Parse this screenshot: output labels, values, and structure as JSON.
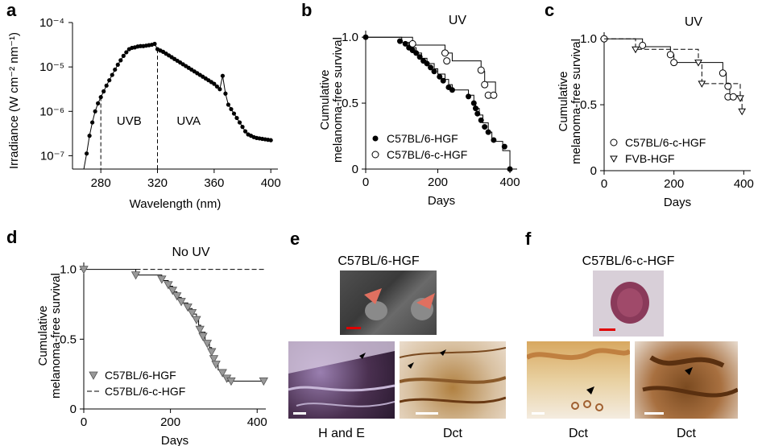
{
  "panels": {
    "a": {
      "label": "a"
    },
    "b": {
      "label": "b"
    },
    "c": {
      "label": "c"
    },
    "d": {
      "label": "d"
    },
    "e": {
      "label": "e",
      "title": "C57BL/6-HGF",
      "captions": [
        "H and E",
        "Dct"
      ]
    },
    "f": {
      "label": "f",
      "title": "C57BL/6-c-HGF",
      "captions": [
        "Dct",
        "Dct"
      ]
    }
  },
  "colors": {
    "filled": "#000000",
    "open": "#ffffff",
    "gray_marker": "#999999",
    "arrow_red": "#e07060",
    "scale_bar_red": "#e00000"
  },
  "chart_data": [
    {
      "id": "a",
      "type": "line",
      "ylabel": "Irradiance (W cm⁻² nm⁻¹)",
      "xlabel": "Wavelength (nm)",
      "xlim": [
        260,
        405
      ],
      "ylim_log10": [
        -7.3,
        -4
      ],
      "yscale": "log",
      "xticks": [
        "280",
        "320",
        "360",
        "400"
      ],
      "yticks": [
        "10⁻⁷",
        "10⁻⁶",
        "10⁻⁵",
        "10⁻⁴"
      ],
      "annotations": [
        "UVB",
        "UVA"
      ],
      "vlines": [
        280,
        320
      ],
      "x": [
        270,
        272,
        274,
        276,
        278,
        280,
        282,
        284,
        286,
        288,
        290,
        292,
        294,
        296,
        298,
        300,
        302,
        304,
        306,
        308,
        310,
        312,
        314,
        316,
        318,
        320,
        322,
        324,
        326,
        328,
        330,
        332,
        334,
        336,
        338,
        340,
        342,
        344,
        346,
        348,
        350,
        352,
        354,
        356,
        358,
        360,
        362,
        364,
        366,
        368,
        370,
        372,
        374,
        376,
        378,
        380,
        382,
        384,
        386,
        388,
        390,
        392,
        394,
        396,
        398,
        400
      ],
      "y": [
        -6.95,
        -6.55,
        -6.25,
        -6.0,
        -5.82,
        -5.68,
        -5.55,
        -5.42,
        -5.3,
        -5.18,
        -5.06,
        -4.95,
        -4.85,
        -4.75,
        -4.67,
        -4.6,
        -4.57,
        -4.56,
        -4.54,
        -4.53,
        -4.53,
        -4.52,
        -4.51,
        -4.5,
        -4.48,
        -4.6,
        -4.63,
        -4.66,
        -4.7,
        -4.74,
        -4.78,
        -4.82,
        -4.86,
        -4.9,
        -4.94,
        -4.98,
        -5.02,
        -5.06,
        -5.1,
        -5.14,
        -5.18,
        -5.22,
        -5.26,
        -5.3,
        -5.34,
        -5.38,
        -5.44,
        -5.5,
        -5.2,
        -5.6,
        -5.85,
        -5.95,
        -6.05,
        -6.15,
        -6.25,
        -6.35,
        -6.45,
        -6.52,
        -6.55,
        -6.58,
        -6.6,
        -6.61,
        -6.62,
        -6.63,
        -6.64,
        -6.65
      ]
    },
    {
      "id": "b",
      "type": "line",
      "title": "UV",
      "ylabel": "Cumulative melanoma-free survival",
      "xlabel": "Days",
      "xlim": [
        0,
        420
      ],
      "ylim": [
        0,
        1.05
      ],
      "xticks": [
        "0",
        "200",
        "400"
      ],
      "yticks": [
        "0",
        "0.5",
        "1.0"
      ],
      "legend_position": "bottom-left",
      "series": [
        {
          "name": "C57BL/6-HGF",
          "marker": "filled-circle",
          "steps": [
            [
              0,
              1.0
            ],
            [
              100,
              0.96
            ],
            [
              120,
              0.92
            ],
            [
              140,
              0.88
            ],
            [
              155,
              0.84
            ],
            [
              170,
              0.8
            ],
            [
              190,
              0.76
            ],
            [
              200,
              0.72
            ],
            [
              220,
              0.68
            ],
            [
              230,
              0.64
            ],
            [
              240,
              0.6
            ],
            [
              285,
              0.56
            ],
            [
              300,
              0.5
            ],
            [
              305,
              0.46
            ],
            [
              315,
              0.41
            ],
            [
              325,
              0.35
            ],
            [
              340,
              0.28
            ],
            [
              350,
              0.21
            ],
            [
              380,
              0.14
            ],
            [
              400,
              0.0
            ]
          ],
          "markers": [
            [
              0,
              1.0
            ],
            [
              95,
              0.97
            ],
            [
              110,
              0.95
            ],
            [
              120,
              0.92
            ],
            [
              130,
              0.9
            ],
            [
              140,
              0.88
            ],
            [
              150,
              0.85
            ],
            [
              160,
              0.82
            ],
            [
              170,
              0.8
            ],
            [
              180,
              0.77
            ],
            [
              190,
              0.74
            ],
            [
              205,
              0.7
            ],
            [
              215,
              0.67
            ],
            [
              230,
              0.62
            ],
            [
              240,
              0.6
            ],
            [
              285,
              0.55
            ],
            [
              300,
              0.5
            ],
            [
              305,
              0.46
            ],
            [
              310,
              0.42
            ],
            [
              320,
              0.37
            ],
            [
              330,
              0.32
            ],
            [
              340,
              0.28
            ],
            [
              355,
              0.22
            ],
            [
              385,
              0.17
            ],
            [
              400,
              0.0
            ]
          ]
        },
        {
          "name": "C57BL/6-c-HGF",
          "marker": "open-circle",
          "steps": [
            [
              0,
              1.0
            ],
            [
              130,
              0.94
            ],
            [
              220,
              0.88
            ],
            [
              240,
              0.82
            ],
            [
              320,
              0.74
            ],
            [
              330,
              0.66
            ],
            [
              360,
              0.56
            ]
          ],
          "markers": [
            [
              130,
              0.95
            ],
            [
              220,
              0.88
            ],
            [
              225,
              0.82
            ],
            [
              320,
              0.75
            ],
            [
              330,
              0.64
            ],
            [
              340,
              0.56
            ],
            [
              355,
              0.56
            ]
          ]
        }
      ]
    },
    {
      "id": "c",
      "type": "line",
      "title": "UV",
      "ylabel": "Cumulative melanoma-free survival",
      "xlabel": "Days",
      "xlim": [
        0,
        420
      ],
      "ylim": [
        0,
        1.05
      ],
      "xticks": [
        "0",
        "200",
        "400"
      ],
      "yticks": [
        "0",
        "0.5",
        "1.0"
      ],
      "legend_position": "bottom-left",
      "series": [
        {
          "name": "C57BL/6-c-HGF",
          "marker": "open-circle",
          "steps": [
            [
              0,
              1.0
            ],
            [
              110,
              0.94
            ],
            [
              190,
              0.88
            ],
            [
              200,
              0.82
            ],
            [
              340,
              0.74
            ],
            [
              350,
              0.66
            ],
            [
              360,
              0.56
            ]
          ],
          "markers": [
            [
              0,
              1.0
            ],
            [
              110,
              0.95
            ],
            [
              190,
              0.88
            ],
            [
              200,
              0.82
            ],
            [
              340,
              0.74
            ],
            [
              355,
              0.64
            ],
            [
              355,
              0.56
            ],
            [
              370,
              0.56
            ]
          ]
        },
        {
          "name": "FVB-HGF",
          "marker": "open-triangle-down",
          "dashed": true,
          "steps": [
            [
              0,
              1.0
            ],
            [
              90,
              0.92
            ],
            [
              270,
              0.82
            ],
            [
              280,
              0.66
            ],
            [
              390,
              0.55
            ],
            [
              395,
              0.45
            ]
          ],
          "markers": [
            [
              90,
              0.92
            ],
            [
              270,
              0.82
            ],
            [
              280,
              0.66
            ],
            [
              390,
              0.55
            ],
            [
              395,
              0.45
            ]
          ]
        }
      ]
    },
    {
      "id": "d",
      "type": "line",
      "title": "No UV",
      "ylabel": "Cumulative melanoma-free survival",
      "xlabel": "Days",
      "xlim": [
        0,
        420
      ],
      "ylim": [
        0,
        1.05
      ],
      "xticks": [
        "0",
        "200",
        "400"
      ],
      "yticks": [
        "0",
        "0.5",
        "1.0"
      ],
      "legend_position": "bottom-left",
      "series": [
        {
          "name": "C57BL/6-HGF",
          "marker": "gray-triangle-down",
          "steps": [
            [
              0,
              1.0
            ],
            [
              120,
              0.96
            ],
            [
              180,
              0.92
            ],
            [
              195,
              0.88
            ],
            [
              205,
              0.84
            ],
            [
              215,
              0.8
            ],
            [
              225,
              0.76
            ],
            [
              240,
              0.72
            ],
            [
              250,
              0.68
            ],
            [
              260,
              0.64
            ],
            [
              265,
              0.6
            ],
            [
              270,
              0.55
            ],
            [
              280,
              0.48
            ],
            [
              290,
              0.44
            ],
            [
              295,
              0.38
            ],
            [
              300,
              0.32
            ],
            [
              310,
              0.28
            ],
            [
              320,
              0.24
            ],
            [
              330,
              0.2
            ],
            [
              420,
              0.2
            ]
          ],
          "markers": [
            [
              0,
              1.0
            ],
            [
              120,
              0.96
            ],
            [
              180,
              0.93
            ],
            [
              195,
              0.89
            ],
            [
              205,
              0.85
            ],
            [
              215,
              0.81
            ],
            [
              225,
              0.77
            ],
            [
              240,
              0.73
            ],
            [
              250,
              0.69
            ],
            [
              260,
              0.64
            ],
            [
              268,
              0.57
            ],
            [
              275,
              0.52
            ],
            [
              285,
              0.47
            ],
            [
              295,
              0.41
            ],
            [
              300,
              0.36
            ],
            [
              305,
              0.32
            ],
            [
              320,
              0.26
            ],
            [
              330,
              0.22
            ],
            [
              340,
              0.2
            ],
            [
              415,
              0.2
            ]
          ]
        },
        {
          "name": "C57BL/6-c-HGF",
          "marker": "none",
          "dashed": true,
          "steps": [
            [
              120,
              1.0
            ],
            [
              420,
              1.0
            ]
          ],
          "markers": []
        }
      ]
    }
  ]
}
